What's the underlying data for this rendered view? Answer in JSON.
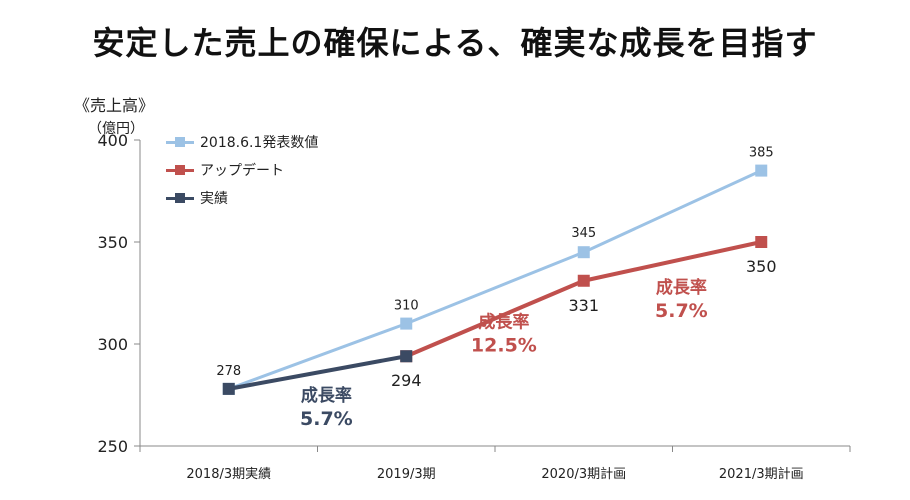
{
  "title": "安定した売上の確保による、確実な成長を目指す",
  "section_label": "《売上高》",
  "unit_label": "（億円）",
  "colors": {
    "plan": "#9cc2e5",
    "update": "#c0504d",
    "actual": "#3b4a63"
  },
  "chart_data": {
    "type": "line",
    "categories": [
      "2018/3期実績",
      "2019/3期",
      "2020/3期計画",
      "2021/3期計画"
    ],
    "ylim": [
      250,
      400
    ],
    "yticks": [
      250,
      300,
      350,
      400
    ],
    "legend_position": "top-left",
    "series": [
      {
        "name": "2018.6.1発表数値",
        "values": [
          278,
          310,
          345,
          385
        ]
      },
      {
        "name": "アップデート",
        "values": [
          null,
          294,
          331,
          350
        ]
      },
      {
        "name": "実績",
        "values": [
          278,
          294,
          null,
          null
        ]
      }
    ],
    "data_labels": {
      "plan": [
        "278",
        "310",
        "345",
        "385"
      ],
      "update": [
        "294",
        "331",
        "350"
      ]
    },
    "annotations": [
      {
        "label": "成長率",
        "value": "5.7%",
        "color": "#3b4a63"
      },
      {
        "label": "成長率",
        "value": "12.5%",
        "color": "#c0504d"
      },
      {
        "label": "成長率",
        "value": "5.7%",
        "color": "#c0504d"
      }
    ]
  }
}
